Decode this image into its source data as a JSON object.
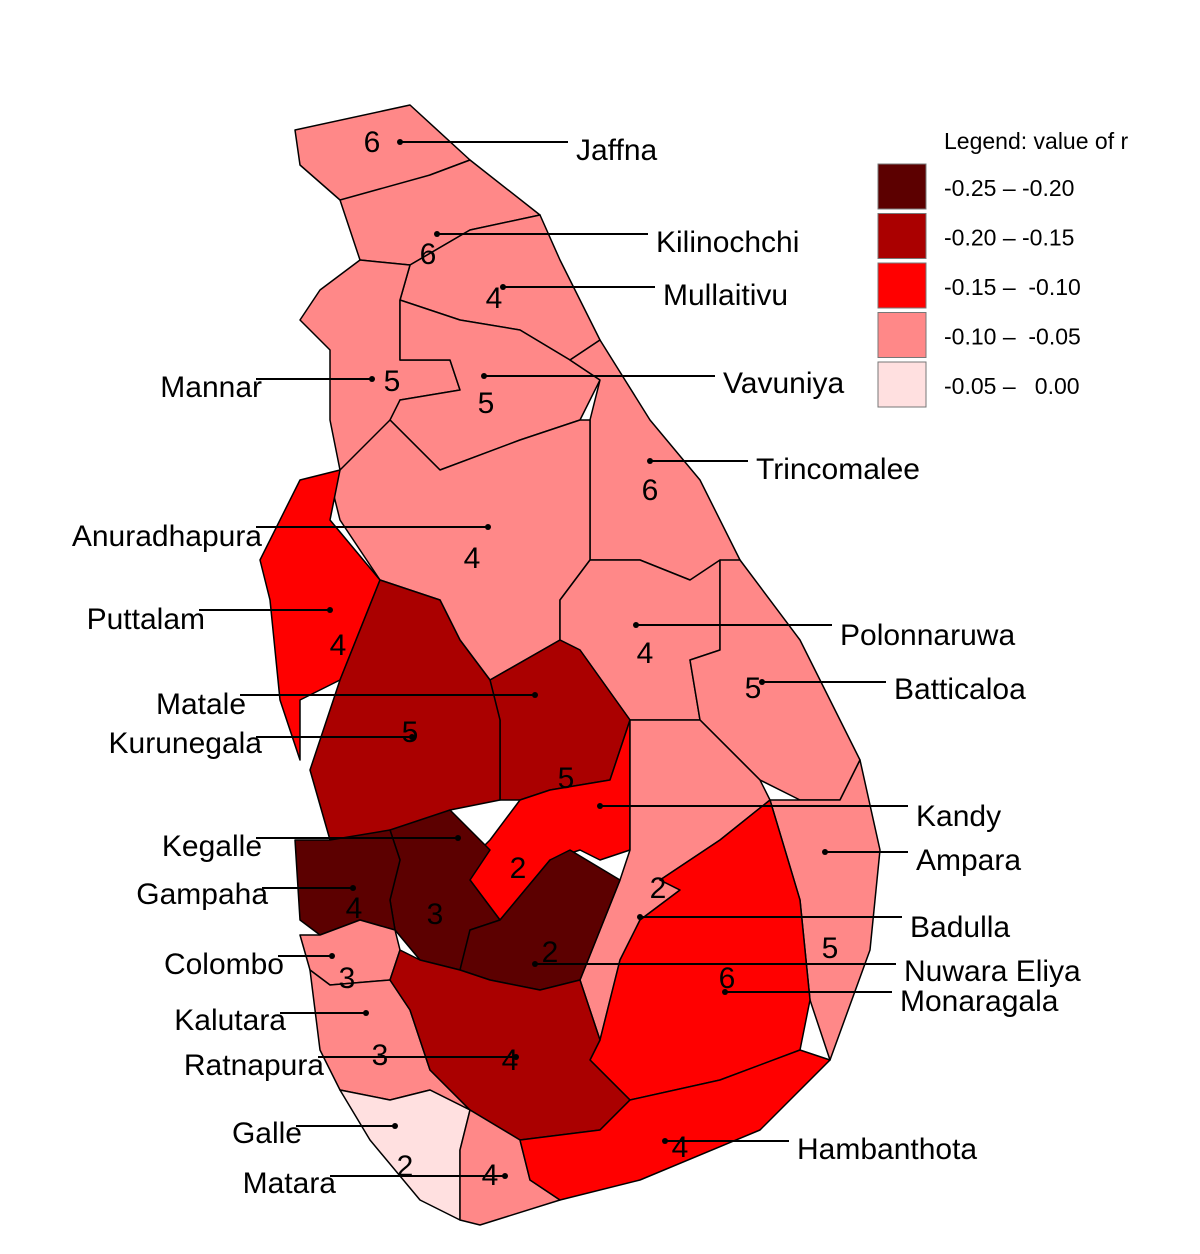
{
  "legend": {
    "title": "Legend: value of r",
    "classes": [
      {
        "label": "-0.25 – -0.20",
        "color": "#5c0000"
      },
      {
        "label": "-0.20 – -0.15",
        "color": "#aa0000"
      },
      {
        "label": "-0.15 –  -0.10",
        "color": "#ff0000"
      },
      {
        "label": "-0.10 –  -0.05",
        "color": "#ff8888"
      },
      {
        "label": "-0.05 –   0.00",
        "color": "#ffe0e0"
      }
    ]
  },
  "districts": [
    {
      "name": "Jaffna",
      "count": "6",
      "class": 3
    },
    {
      "name": "Kilinochchi",
      "count": "6",
      "class": 3
    },
    {
      "name": "Mullaitivu",
      "count": "4",
      "class": 3
    },
    {
      "name": "Mannar",
      "count": "5",
      "class": 3
    },
    {
      "name": "Vavuniya",
      "count": "5",
      "class": 3
    },
    {
      "name": "Trincomalee",
      "count": "6",
      "class": 3
    },
    {
      "name": "Anuradhapura",
      "count": "4",
      "class": 3
    },
    {
      "name": "Puttalam",
      "count": "4",
      "class": 2
    },
    {
      "name": "Polonnaruwa",
      "count": "4",
      "class": 3
    },
    {
      "name": "Batticaloa",
      "count": "5",
      "class": 3
    },
    {
      "name": "Matale",
      "count": "5",
      "class": 1
    },
    {
      "name": "Kurunegala",
      "count": "5",
      "class": 1
    },
    {
      "name": "Kandy",
      "count": "2",
      "class": 2
    },
    {
      "name": "Ampara",
      "count": "5",
      "class": 3
    },
    {
      "name": "Kegalle",
      "count": "3",
      "class": 0
    },
    {
      "name": "Gampaha",
      "count": "4",
      "class": 0
    },
    {
      "name": "Badulla",
      "count": "2",
      "class": 3
    },
    {
      "name": "Colombo",
      "count": "3",
      "class": 3
    },
    {
      "name": "Nuwara Eliya",
      "count": "2",
      "class": 0
    },
    {
      "name": "Monaragala",
      "count": "6",
      "class": 2
    },
    {
      "name": "Kalutara",
      "count": "3",
      "class": 3
    },
    {
      "name": "Ratnapura",
      "count": "4",
      "class": 1
    },
    {
      "name": "Galle",
      "count": "2",
      "class": 4
    },
    {
      "name": "Matara",
      "count": "4",
      "class": 3
    },
    {
      "name": "Hambanthota",
      "count": "4",
      "class": 2
    }
  ]
}
